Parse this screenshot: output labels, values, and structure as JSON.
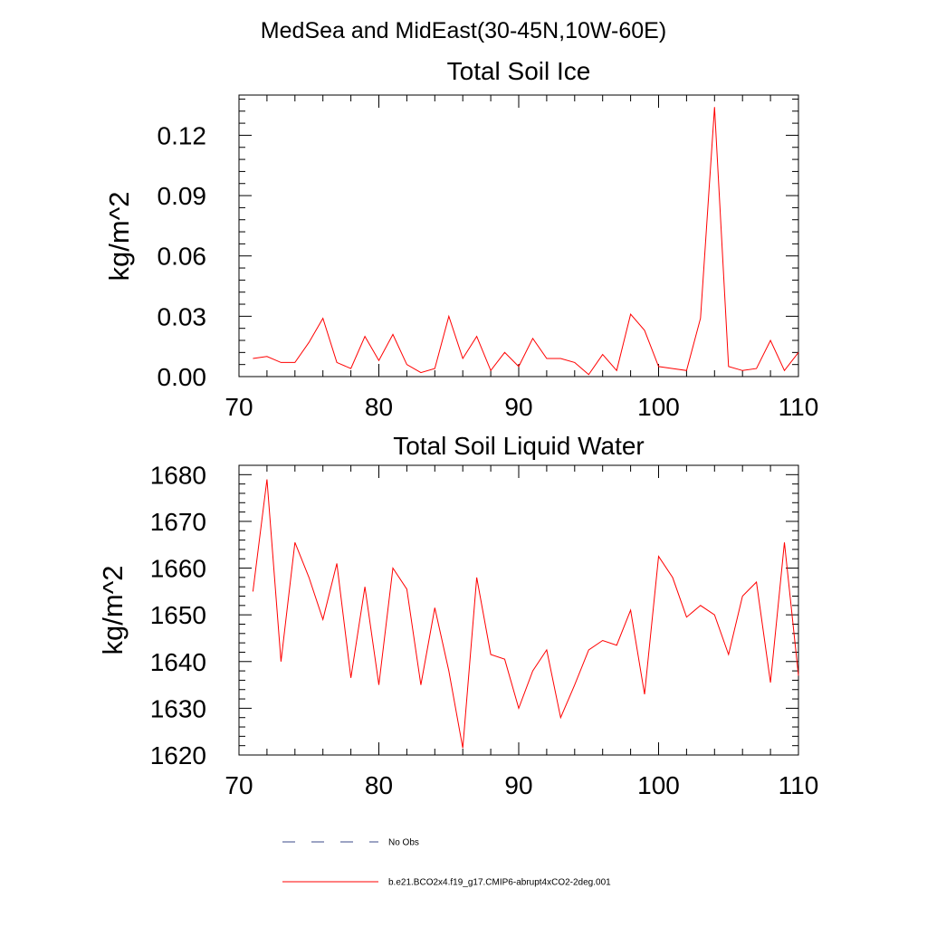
{
  "figure": {
    "title": "MedSea and MidEast(30-45N,10W-60E)"
  },
  "colors": {
    "series": "#ff0000",
    "no_obs": "#3a4a8a",
    "axes": "#000000",
    "background": "#ffffff"
  },
  "legend": {
    "placement": "bottom-left",
    "items": [
      {
        "label": "No Obs",
        "style": "dashed",
        "color": "#3a4a8a"
      },
      {
        "label": "b.e21.BCO2x4.f19_g17.CMIP6-abrupt4xCO2-2deg.001",
        "style": "solid",
        "color": "#ff0000"
      }
    ]
  },
  "chart_data": [
    {
      "type": "line",
      "title": "Total Soil Ice",
      "xlabel": "",
      "ylabel": "kg/m^2",
      "xlim": [
        70,
        110
      ],
      "ylim": [
        0,
        0.14
      ],
      "xticks": [
        70,
        80,
        90,
        100,
        110
      ],
      "xtick_labels": [
        "70",
        "80",
        "90",
        "100",
        "110"
      ],
      "yticks": [
        0,
        0.03,
        0.06,
        0.09,
        0.12
      ],
      "ytick_labels": [
        "0.00",
        "0.03",
        "0.06",
        "0.09",
        "0.12"
      ],
      "grid": false,
      "x": [
        71,
        72,
        73,
        74,
        75,
        76,
        77,
        78,
        79,
        80,
        81,
        82,
        83,
        84,
        85,
        86,
        87,
        88,
        89,
        90,
        91,
        92,
        93,
        94,
        95,
        96,
        97,
        98,
        99,
        100,
        101,
        102,
        103,
        104,
        105,
        106,
        107,
        108,
        109,
        110
      ],
      "series": [
        {
          "name": "b.e21.BCO2x4.f19_g17.CMIP6-abrupt4xCO2-2deg.001",
          "color": "#ff0000",
          "values": [
            0.009,
            0.01,
            0.007,
            0.007,
            0.017,
            0.029,
            0.007,
            0.004,
            0.02,
            0.008,
            0.021,
            0.006,
            0.002,
            0.004,
            0.03,
            0.009,
            0.02,
            0.003,
            0.012,
            0.005,
            0.019,
            0.009,
            0.009,
            0.007,
            0.001,
            0.011,
            0.003,
            0.031,
            0.023,
            0.005,
            0.004,
            0.003,
            0.029,
            0.134,
            0.005,
            0.003,
            0.004,
            0.018,
            0.003,
            0.012
          ]
        }
      ]
    },
    {
      "type": "line",
      "title": "Total Soil Liquid Water",
      "xlabel": "",
      "ylabel": "kg/m^2",
      "xlim": [
        70,
        110
      ],
      "ylim": [
        1620,
        1682
      ],
      "xticks": [
        70,
        80,
        90,
        100,
        110
      ],
      "xtick_labels": [
        "70",
        "80",
        "90",
        "100",
        "110"
      ],
      "yticks": [
        1620,
        1630,
        1640,
        1650,
        1660,
        1670,
        1680
      ],
      "ytick_labels": [
        "1620",
        "1630",
        "1640",
        "1650",
        "1660",
        "1670",
        "1680"
      ],
      "grid": false,
      "x": [
        71,
        72,
        73,
        74,
        75,
        76,
        77,
        78,
        79,
        80,
        81,
        82,
        83,
        84,
        85,
        86,
        87,
        88,
        89,
        90,
        91,
        92,
        93,
        94,
        95,
        96,
        97,
        98,
        99,
        100,
        101,
        102,
        103,
        104,
        105,
        106,
        107,
        108,
        109,
        110
      ],
      "series": [
        {
          "name": "b.e21.BCO2x4.f19_g17.CMIP6-abrupt4xCO2-2deg.001",
          "color": "#ff0000",
          "values": [
            1655,
            1679,
            1640,
            1665.5,
            1658,
            1649,
            1661,
            1636.5,
            1656,
            1635,
            1660,
            1655.5,
            1635,
            1651.5,
            1638,
            1621.5,
            1658,
            1641.5,
            1640.5,
            1630,
            1638,
            1642.5,
            1628,
            1635,
            1642.5,
            1644.5,
            1643.5,
            1651,
            1633,
            1662.5,
            1658,
            1649.5,
            1652,
            1650,
            1641.5,
            1654,
            1657,
            1635.5,
            1665.5,
            1637
          ]
        }
      ]
    }
  ]
}
